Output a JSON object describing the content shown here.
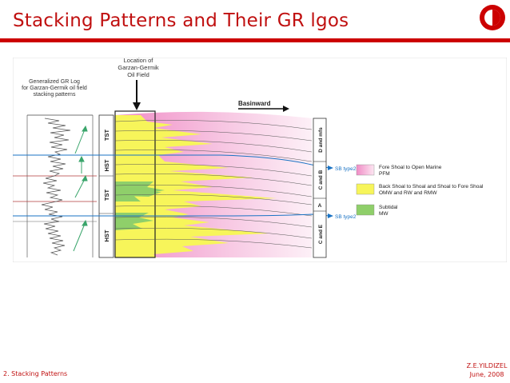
{
  "slide": {
    "title": "Stacking Patterns and Their GR lgos",
    "footer_left": "2. Stacking Patterns",
    "author": "Z.E.YILDIZEL",
    "date": "June, 2008"
  },
  "colors": {
    "accent": "#cc0000",
    "fore_shoal": "#f3a2cf",
    "back_shoal": "#f7f55a",
    "subtidal": "#8fcf6a",
    "sequence_boundary": "#1a73c4"
  },
  "figure": {
    "gr_log_caption": [
      "Generalized GR Log",
      "for Garzan-Germik oil field",
      "stacking patterns"
    ],
    "location_caption": [
      "Location of",
      "Garzan-Germik",
      "Oil Field"
    ],
    "basinward_label": "Basinward",
    "left_tracts": [
      "TST",
      "HST",
      "TST",
      "HST"
    ],
    "right_units": [
      "D and mfs",
      "C and B",
      "A",
      "C and E"
    ],
    "sb_labels": [
      "SB type2",
      "SB type2"
    ],
    "legend": [
      {
        "title": "Fore Shoal to Open Marine",
        "code": "PFM",
        "color_key": "fore_shoal"
      },
      {
        "title": "Back Shoal to Shoal and Shoal to Fore Shoal",
        "code": "OMW  and RW and RMW",
        "color_key": "back_shoal"
      },
      {
        "title": "Subtidal",
        "code": "MW",
        "color_key": "subtidal"
      }
    ]
  }
}
